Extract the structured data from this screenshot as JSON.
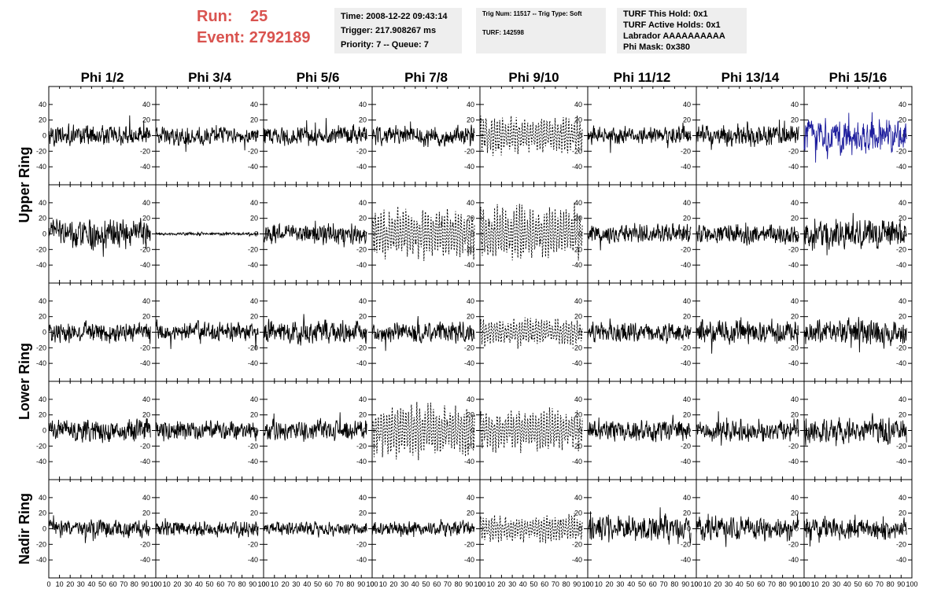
{
  "header": {
    "run_label": "Run:",
    "run_value": "25",
    "event_label": "Event:",
    "event_value": "2792189",
    "time_line": "Time: 2008-12-22 09:43:14",
    "trigger_line": "Trigger: 217.908267 ms",
    "priority_line": "Priority: 7 -- Queue: 7",
    "trig_line": "Trig Num: 11517 -- Trig Type: Soft",
    "turf_line": "TURF: 142598",
    "hold_line": "TURF This Hold: 0x1",
    "active_holds_line": "TURF Active Holds: 0x1",
    "labrador_line": "Labrador AAAAAAAAAA",
    "phi_mask_line": "Phi Mask: 0x380"
  },
  "colors": {
    "run_text": "#d9534f",
    "info_box_bg": "#eeeeee",
    "trace_default": "#000000",
    "trace_highlight": "#1c1c9c"
  },
  "chart_data": {
    "type": "line",
    "grid": false,
    "columns": [
      "Phi 1/2",
      "Phi 3/4",
      "Phi 5/6",
      "Phi 7/8",
      "Phi 9/10",
      "Phi 11/12",
      "Phi 13/14",
      "Phi 15/16"
    ],
    "rows": [
      "Upper Ring",
      "Upper Ring",
      "Lower Ring",
      "Lower Ring",
      "Nadir Ring"
    ],
    "row_labels": [
      "Upper Ring",
      "Lower Ring",
      "Nadir Ring"
    ],
    "xlim": [
      0,
      100
    ],
    "ylim": [
      -55,
      55
    ],
    "x_ticks": [
      "0",
      "10",
      "20",
      "30",
      "40",
      "50",
      "60",
      "70",
      "80",
      "90",
      "100"
    ],
    "y_ticks": [
      "-40",
      "-20",
      "0",
      "20",
      "40"
    ],
    "samples_per_trace": 260,
    "panels": [
      {
        "row": 0,
        "col": 0,
        "amp": 14,
        "style": "solid"
      },
      {
        "row": 0,
        "col": 1,
        "amp": 12,
        "style": "solid"
      },
      {
        "row": 0,
        "col": 2,
        "amp": 14,
        "style": "solid"
      },
      {
        "row": 0,
        "col": 3,
        "amp": 14,
        "style": "solid"
      },
      {
        "row": 0,
        "col": 4,
        "amp": 17,
        "style": "dashed"
      },
      {
        "row": 0,
        "col": 5,
        "amp": 12,
        "style": "solid"
      },
      {
        "row": 0,
        "col": 6,
        "amp": 14,
        "style": "solid"
      },
      {
        "row": 0,
        "col": 7,
        "amp": 22,
        "style": "highlight"
      },
      {
        "row": 1,
        "col": 0,
        "amp": 20,
        "style": "solid"
      },
      {
        "row": 1,
        "col": 1,
        "amp": 2,
        "style": "solid"
      },
      {
        "row": 1,
        "col": 2,
        "amp": 14,
        "style": "solid"
      },
      {
        "row": 1,
        "col": 3,
        "amp": 22,
        "style": "dashed"
      },
      {
        "row": 1,
        "col": 4,
        "amp": 24,
        "style": "dashed"
      },
      {
        "row": 1,
        "col": 5,
        "amp": 13,
        "style": "solid"
      },
      {
        "row": 1,
        "col": 6,
        "amp": 13,
        "style": "solid"
      },
      {
        "row": 1,
        "col": 7,
        "amp": 20,
        "style": "solid"
      },
      {
        "row": 2,
        "col": 0,
        "amp": 14,
        "style": "solid"
      },
      {
        "row": 2,
        "col": 1,
        "amp": 13,
        "style": "solid"
      },
      {
        "row": 2,
        "col": 2,
        "amp": 16,
        "style": "solid"
      },
      {
        "row": 2,
        "col": 3,
        "amp": 14,
        "style": "solid"
      },
      {
        "row": 2,
        "col": 4,
        "amp": 12,
        "style": "dashed"
      },
      {
        "row": 2,
        "col": 5,
        "amp": 13,
        "style": "solid"
      },
      {
        "row": 2,
        "col": 6,
        "amp": 16,
        "style": "solid"
      },
      {
        "row": 2,
        "col": 7,
        "amp": 17,
        "style": "solid"
      },
      {
        "row": 3,
        "col": 0,
        "amp": 16,
        "style": "solid"
      },
      {
        "row": 3,
        "col": 1,
        "amp": 14,
        "style": "solid"
      },
      {
        "row": 3,
        "col": 2,
        "amp": 14,
        "style": "solid"
      },
      {
        "row": 3,
        "col": 3,
        "amp": 22,
        "style": "dashed"
      },
      {
        "row": 3,
        "col": 4,
        "amp": 18,
        "style": "dashed"
      },
      {
        "row": 3,
        "col": 5,
        "amp": 15,
        "style": "solid"
      },
      {
        "row": 3,
        "col": 6,
        "amp": 14,
        "style": "solid"
      },
      {
        "row": 3,
        "col": 7,
        "amp": 18,
        "style": "solid"
      },
      {
        "row": 4,
        "col": 0,
        "amp": 12,
        "style": "solid"
      },
      {
        "row": 4,
        "col": 1,
        "amp": 11,
        "style": "solid"
      },
      {
        "row": 4,
        "col": 2,
        "amp": 10,
        "style": "solid"
      },
      {
        "row": 4,
        "col": 3,
        "amp": 10,
        "style": "solid"
      },
      {
        "row": 4,
        "col": 4,
        "amp": 12,
        "style": "dashed"
      },
      {
        "row": 4,
        "col": 5,
        "amp": 17,
        "style": "solid"
      },
      {
        "row": 4,
        "col": 6,
        "amp": 16,
        "style": "solid"
      },
      {
        "row": 4,
        "col": 7,
        "amp": 15,
        "style": "solid"
      }
    ]
  }
}
